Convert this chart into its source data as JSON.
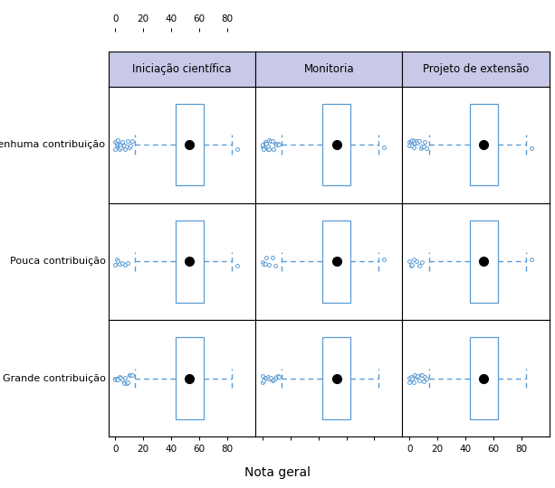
{
  "col_labels": [
    "Iniciação científica",
    "Monitoria",
    "Projeto de extensão"
  ],
  "row_labels": [
    "Nenhuma contribuição",
    "Pouca contribuição",
    "Grande contribuição"
  ],
  "xlabel": "Nota geral",
  "xlim": [
    -5,
    100
  ],
  "xticks": [
    0,
    20,
    40,
    60,
    80
  ],
  "box_color": "#5b9bd5",
  "mean_color": "black",
  "header_bg": "#c8c8e8",
  "background": "white",
  "box_data": {
    "nenhuma": {
      "q1": 43,
      "q3": 63,
      "mean": 53,
      "wlo": 14,
      "whi": 83,
      "out_lo": [
        0,
        0,
        1,
        1,
        2,
        2,
        3,
        3,
        4,
        4,
        5,
        5,
        6,
        7,
        8,
        9,
        10,
        11,
        12
      ],
      "out_hi": [
        87
      ]
    },
    "pouca": {
      "q1": 43,
      "q3": 63,
      "mean": 53,
      "wlo": 14,
      "whi": 83,
      "out_lo": [
        0,
        1,
        2,
        3,
        5,
        7,
        9
      ],
      "out_hi": [
        87
      ]
    },
    "grande": {
      "q1": 43,
      "q3": 63,
      "mean": 53,
      "wlo": 14,
      "whi": 83,
      "out_lo": [
        0,
        0,
        1,
        2,
        3,
        4,
        5,
        6,
        7,
        8,
        9,
        10,
        11,
        12
      ],
      "out_hi": []
    }
  },
  "row_keys": [
    "nenhuma",
    "pouca",
    "grande"
  ],
  "figsize": [
    6.13,
    5.4
  ],
  "dpi": 100
}
